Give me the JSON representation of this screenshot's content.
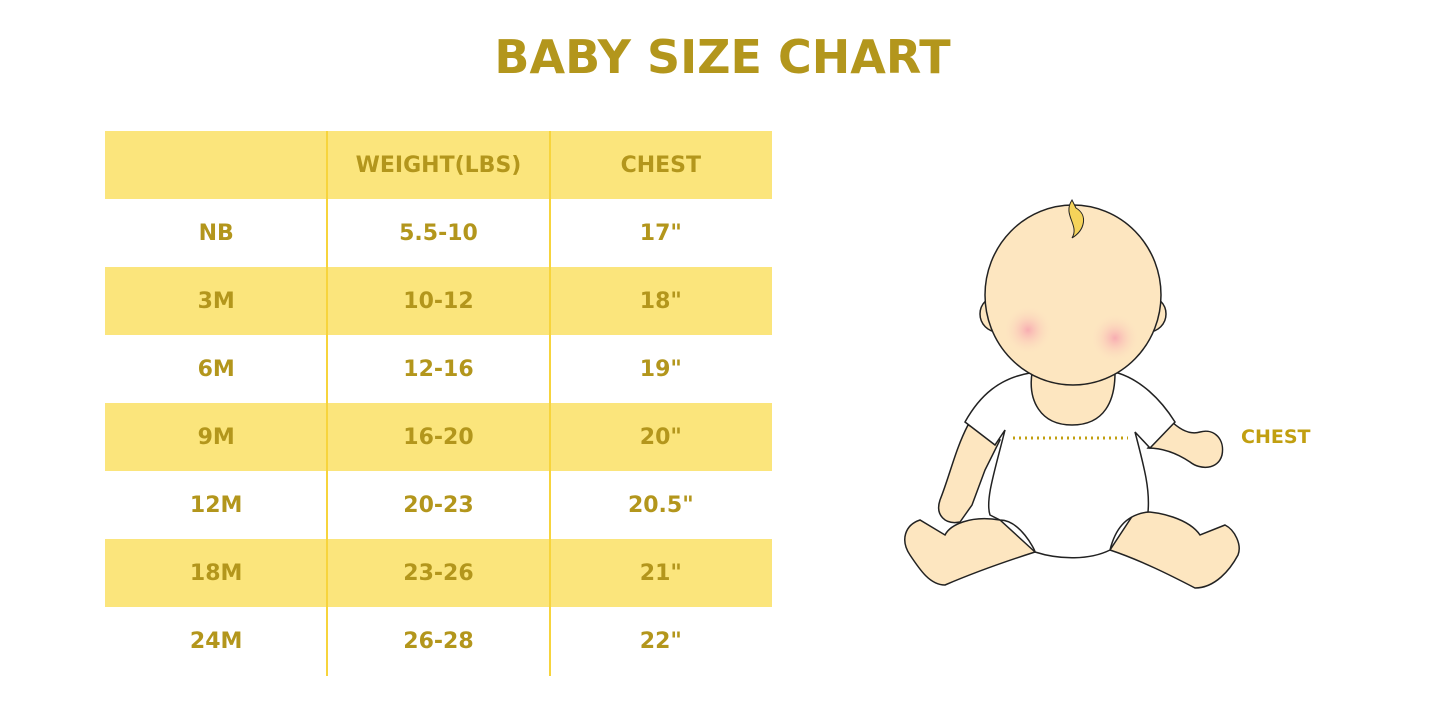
{
  "title": "BABY SIZE CHART",
  "table": {
    "headers": [
      "",
      "WEIGHT(LBS)",
      "CHEST"
    ],
    "rows": [
      [
        "NB",
        "5.5-10",
        "17\""
      ],
      [
        "3M",
        "10-12",
        "18\""
      ],
      [
        "6M",
        "12-16",
        "19\""
      ],
      [
        "9M",
        "16-20",
        "20\""
      ],
      [
        "12M",
        "20-23",
        "20.5\""
      ],
      [
        "18M",
        "23-26",
        "21\""
      ],
      [
        "24M",
        "26-28",
        "22\""
      ]
    ]
  },
  "illustration": {
    "label": "CHEST",
    "icon": "baby-illustration"
  },
  "colors": {
    "text": "#b3961c",
    "stripe": "#fbe57c",
    "divider": "#f7d43c",
    "skin": "#fde6c0"
  }
}
